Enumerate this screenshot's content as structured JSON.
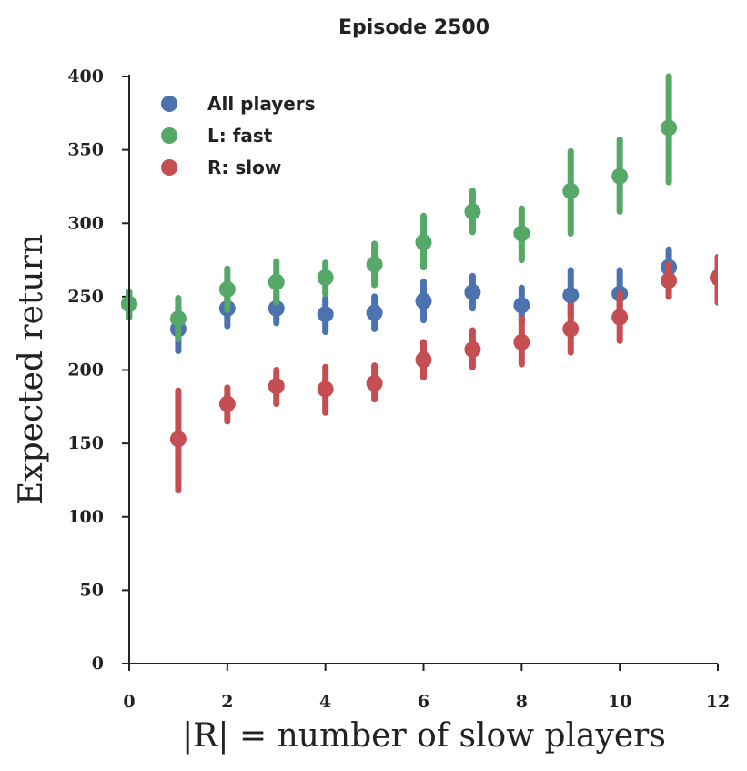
{
  "chart_data": {
    "type": "scatter",
    "title": "Episode 2500",
    "xlabel": "|R| = number of slow players",
    "ylabel": "Expected return",
    "xlim": [
      0,
      12
    ],
    "ylim": [
      0,
      400
    ],
    "xticks": [
      "0",
      "2",
      "4",
      "6",
      "8",
      "10",
      "12"
    ],
    "yticks": [
      "0",
      "50",
      "100",
      "150",
      "200",
      "250",
      "300",
      "350",
      "400"
    ],
    "legend_position": "top-left",
    "grid": false,
    "series": [
      {
        "name": "All players",
        "color": "#4C72B0",
        "points": [
          {
            "x": 0,
            "y": 245,
            "lo": 238,
            "hi": 252
          },
          {
            "x": 1,
            "y": 228,
            "lo": 213,
            "hi": 243
          },
          {
            "x": 2,
            "y": 242,
            "lo": 230,
            "hi": 254
          },
          {
            "x": 3,
            "y": 242,
            "lo": 232,
            "hi": 252
          },
          {
            "x": 4,
            "y": 238,
            "lo": 226,
            "hi": 249
          },
          {
            "x": 5,
            "y": 239,
            "lo": 228,
            "hi": 250
          },
          {
            "x": 6,
            "y": 247,
            "lo": 234,
            "hi": 260
          },
          {
            "x": 7,
            "y": 253,
            "lo": 242,
            "hi": 264
          },
          {
            "x": 8,
            "y": 244,
            "lo": 232,
            "hi": 256
          },
          {
            "x": 9,
            "y": 251,
            "lo": 237,
            "hi": 268
          },
          {
            "x": 10,
            "y": 252,
            "lo": 237,
            "hi": 268
          },
          {
            "x": 11,
            "y": 270,
            "lo": 258,
            "hi": 282
          }
        ]
      },
      {
        "name": "L: fast",
        "color": "#55A868",
        "points": [
          {
            "x": 0,
            "y": 245,
            "lo": 236,
            "hi": 253
          },
          {
            "x": 1,
            "y": 235,
            "lo": 221,
            "hi": 249
          },
          {
            "x": 2,
            "y": 255,
            "lo": 241,
            "hi": 269
          },
          {
            "x": 3,
            "y": 260,
            "lo": 246,
            "hi": 274
          },
          {
            "x": 4,
            "y": 263,
            "lo": 252,
            "hi": 273
          },
          {
            "x": 5,
            "y": 272,
            "lo": 258,
            "hi": 286
          },
          {
            "x": 6,
            "y": 287,
            "lo": 270,
            "hi": 305
          },
          {
            "x": 7,
            "y": 308,
            "lo": 294,
            "hi": 322
          },
          {
            "x": 8,
            "y": 293,
            "lo": 275,
            "hi": 310
          },
          {
            "x": 9,
            "y": 322,
            "lo": 293,
            "hi": 349
          },
          {
            "x": 10,
            "y": 332,
            "lo": 308,
            "hi": 357
          },
          {
            "x": 11,
            "y": 365,
            "lo": 328,
            "hi": 400
          }
        ]
      },
      {
        "name": "R: slow",
        "color": "#C44E52",
        "points": [
          {
            "x": 1,
            "y": 153,
            "lo": 118,
            "hi": 186
          },
          {
            "x": 2,
            "y": 177,
            "lo": 165,
            "hi": 188
          },
          {
            "x": 3,
            "y": 189,
            "lo": 177,
            "hi": 200
          },
          {
            "x": 4,
            "y": 187,
            "lo": 171,
            "hi": 202
          },
          {
            "x": 5,
            "y": 191,
            "lo": 180,
            "hi": 203
          },
          {
            "x": 6,
            "y": 207,
            "lo": 195,
            "hi": 219
          },
          {
            "x": 7,
            "y": 214,
            "lo": 202,
            "hi": 227
          },
          {
            "x": 8,
            "y": 219,
            "lo": 204,
            "hi": 235
          },
          {
            "x": 9,
            "y": 228,
            "lo": 212,
            "hi": 244
          },
          {
            "x": 10,
            "y": 236,
            "lo": 220,
            "hi": 252
          },
          {
            "x": 11,
            "y": 261,
            "lo": 250,
            "hi": 272
          },
          {
            "x": 12,
            "y": 263,
            "lo": 246,
            "hi": 277
          }
        ]
      }
    ]
  }
}
